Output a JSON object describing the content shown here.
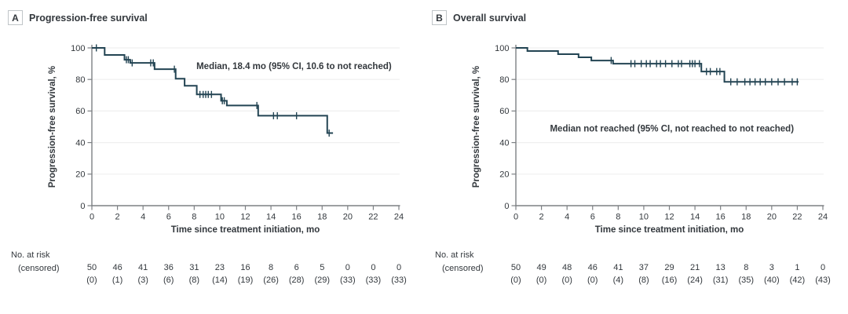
{
  "figure": {
    "background": "#ffffff",
    "curve_color": "#234453",
    "axis_color": "#7d8084",
    "grid_color": "#efefef",
    "text_color": "#33383d"
  },
  "risk_header": {
    "line1": "No. at risk",
    "line2": "(censored)"
  },
  "chart_data": [
    {
      "type": "line",
      "subtype": "kaplan-meier-step",
      "panel_label": "A",
      "title": "Progression-free survival",
      "annotation": "Median, 18.4 mo (95% CI, 10.6 to not reached)",
      "annotation_pos": {
        "t": 15.8,
        "pct": 86.5
      },
      "xlabel": "Time since treatment initiation, mo",
      "ylabel": "Progression-free survival, %",
      "xlim": [
        0,
        24
      ],
      "ylim": [
        0,
        100
      ],
      "xticks": [
        0,
        2,
        4,
        6,
        8,
        10,
        12,
        14,
        16,
        18,
        20,
        22,
        24
      ],
      "yticks": [
        0,
        20,
        40,
        60,
        80,
        100
      ],
      "grid": "horizontal",
      "series": [
        {
          "name": "Progression-free survival",
          "steps": [
            [
              0,
              100
            ],
            [
              1.0,
              95.5
            ],
            [
              2.55,
              92.5
            ],
            [
              3.0,
              90.5
            ],
            [
              4.9,
              86.5
            ],
            [
              6.55,
              80.5
            ],
            [
              7.25,
              76
            ],
            [
              8.2,
              70.5
            ],
            [
              10.1,
              66.5
            ],
            [
              10.55,
              63.5
            ],
            [
              13.0,
              57
            ],
            [
              18.4,
              46
            ]
          ],
          "end_time": 18.85,
          "censors": [
            [
              0.35,
              100
            ],
            [
              2.7,
              92.5
            ],
            [
              2.85,
              92.5
            ],
            [
              3.15,
              90.5
            ],
            [
              4.6,
              90.5
            ],
            [
              4.8,
              90.5
            ],
            [
              6.45,
              86.5
            ],
            [
              8.45,
              70.5
            ],
            [
              8.7,
              70.5
            ],
            [
              8.9,
              70.5
            ],
            [
              9.1,
              70.5
            ],
            [
              9.35,
              70.5
            ],
            [
              10.2,
              66.5
            ],
            [
              10.35,
              66.5
            ],
            [
              12.9,
              63.5
            ],
            [
              14.2,
              57
            ],
            [
              14.5,
              57
            ],
            [
              16.0,
              57
            ],
            [
              18.55,
              46
            ]
          ]
        }
      ],
      "risk_table": {
        "times": [
          0,
          2,
          4,
          6,
          8,
          10,
          12,
          14,
          16,
          18,
          20,
          22,
          24
        ],
        "at_risk": [
          50,
          46,
          41,
          36,
          31,
          23,
          16,
          8,
          6,
          5,
          0,
          0,
          0
        ],
        "censored": [
          "(0)",
          "(1)",
          "(3)",
          "(6)",
          "(8)",
          "(14)",
          "(19)",
          "(26)",
          "(28)",
          "(29)",
          "(33)",
          "(33)",
          "(33)"
        ]
      }
    },
    {
      "type": "line",
      "subtype": "kaplan-meier-step",
      "panel_label": "B",
      "title": "Overall survival",
      "annotation": "Median not reached (95% CI, not reached to not reached)",
      "annotation_pos": {
        "t": 12.2,
        "pct": 47
      },
      "xlabel": "Time since treatment initiation, mo",
      "ylabel": "Progression-free survival, %",
      "xlim": [
        0,
        24
      ],
      "ylim": [
        0,
        100
      ],
      "xticks": [
        0,
        2,
        4,
        6,
        8,
        10,
        12,
        14,
        16,
        18,
        20,
        22,
        24
      ],
      "yticks": [
        0,
        20,
        40,
        60,
        80,
        100
      ],
      "grid": "horizontal",
      "series": [
        {
          "name": "Overall survival",
          "steps": [
            [
              0,
              100
            ],
            [
              0.9,
              98
            ],
            [
              3.3,
              96
            ],
            [
              4.9,
              94
            ],
            [
              5.9,
              92
            ],
            [
              7.6,
              90
            ],
            [
              14.5,
              85
            ],
            [
              16.3,
              78.5
            ]
          ],
          "end_time": 22.1,
          "censors": [
            [
              7.45,
              92
            ],
            [
              9.0,
              90
            ],
            [
              9.3,
              90
            ],
            [
              9.8,
              90
            ],
            [
              10.2,
              90
            ],
            [
              10.5,
              90
            ],
            [
              11.0,
              90
            ],
            [
              11.3,
              90
            ],
            [
              11.7,
              90
            ],
            [
              12.2,
              90
            ],
            [
              12.7,
              90
            ],
            [
              12.95,
              90
            ],
            [
              13.6,
              90
            ],
            [
              13.8,
              90
            ],
            [
              14.0,
              90
            ],
            [
              14.35,
              90
            ],
            [
              14.9,
              85
            ],
            [
              15.2,
              85
            ],
            [
              15.7,
              85
            ],
            [
              15.95,
              85
            ],
            [
              16.8,
              78.5
            ],
            [
              17.3,
              78.5
            ],
            [
              17.9,
              78.5
            ],
            [
              18.3,
              78.5
            ],
            [
              18.7,
              78.5
            ],
            [
              19.1,
              78.5
            ],
            [
              19.5,
              78.5
            ],
            [
              20.0,
              78.5
            ],
            [
              20.5,
              78.5
            ],
            [
              21.0,
              78.5
            ],
            [
              21.6,
              78.5
            ],
            [
              22.0,
              78.5
            ]
          ]
        }
      ],
      "risk_table": {
        "times": [
          0,
          2,
          4,
          6,
          8,
          10,
          12,
          14,
          16,
          18,
          20,
          22,
          24
        ],
        "at_risk": [
          50,
          49,
          48,
          46,
          41,
          37,
          29,
          21,
          13,
          8,
          3,
          1,
          0
        ],
        "censored": [
          "(0)",
          "(0)",
          "(0)",
          "(0)",
          "(4)",
          "(8)",
          "(16)",
          "(24)",
          "(31)",
          "(35)",
          "(40)",
          "(42)",
          "(43)"
        ]
      }
    }
  ]
}
